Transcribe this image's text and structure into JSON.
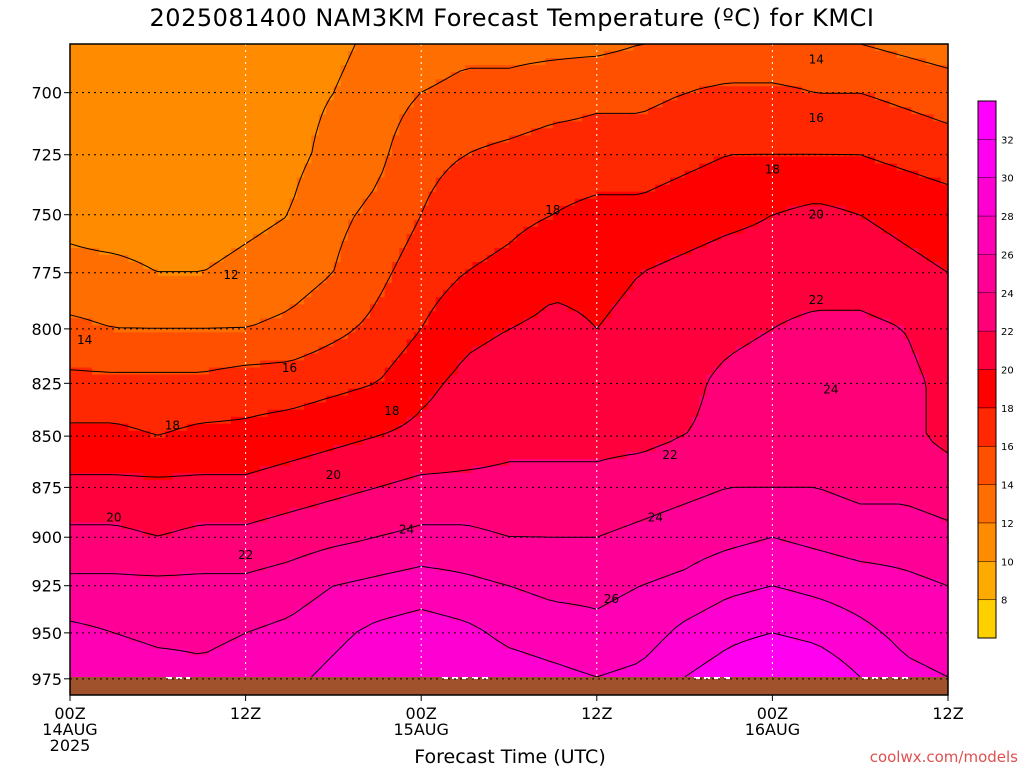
{
  "chart_data": {
    "type": "heatmap",
    "title": "2025081400 NAM3KM Forecast Temperature (ºC) for KMCI",
    "xlabel": "Forecast Time (UTC)",
    "ylabel": "",
    "y_scale": "log-pressure",
    "ylim": [
      974,
      681
    ],
    "y_ticks": [
      700,
      725,
      750,
      775,
      800,
      825,
      850,
      875,
      900,
      925,
      950,
      975
    ],
    "x_range_hours": [
      0,
      60
    ],
    "x_ticks": [
      {
        "hour": 0,
        "lines": [
          "00Z",
          "14AUG",
          "2025"
        ]
      },
      {
        "hour": 12,
        "lines": [
          "12Z"
        ]
      },
      {
        "hour": 24,
        "lines": [
          "00Z",
          "15AUG"
        ]
      },
      {
        "hour": 36,
        "lines": [
          "12Z"
        ]
      },
      {
        "hour": 48,
        "lines": [
          "00Z",
          "16AUG"
        ]
      },
      {
        "hour": 60,
        "lines": [
          "12Z"
        ]
      }
    ],
    "grid": true,
    "colorbar": {
      "position": "right",
      "levels": [
        8,
        10,
        12,
        14,
        16,
        18,
        20,
        22,
        24,
        26,
        28,
        30,
        32
      ],
      "colors": [
        "#ffd000",
        "#ffaa00",
        "#ff8c00",
        "#ff6e00",
        "#ff5000",
        "#ff2800",
        "#ff0000",
        "#ff003c",
        "#ff0078",
        "#ff0096",
        "#ff00b4",
        "#ff00d2",
        "#ff00f0",
        "#ff00ff"
      ]
    },
    "contour_labels": [
      {
        "value": 14,
        "hour": 1,
        "p": 805
      },
      {
        "value": 12,
        "hour": 11,
        "p": 776
      },
      {
        "value": 16,
        "hour": 15,
        "p": 818
      },
      {
        "value": 18,
        "hour": 7,
        "p": 845
      },
      {
        "value": 18,
        "hour": 22,
        "p": 838
      },
      {
        "value": 20,
        "hour": 18,
        "p": 869
      },
      {
        "value": 20,
        "hour": 3,
        "p": 890
      },
      {
        "value": 22,
        "hour": 12,
        "p": 909
      },
      {
        "value": 24,
        "hour": 23,
        "p": 896
      },
      {
        "value": 18,
        "hour": 33,
        "p": 748
      },
      {
        "value": 22,
        "hour": 41,
        "p": 859
      },
      {
        "value": 24,
        "hour": 40,
        "p": 890
      },
      {
        "value": 26,
        "hour": 37,
        "p": 932
      },
      {
        "value": 14,
        "hour": 51,
        "p": 687
      },
      {
        "value": 16,
        "hour": 51,
        "p": 710
      },
      {
        "value": 18,
        "hour": 48,
        "p": 731
      },
      {
        "value": 20,
        "hour": 51,
        "p": 750
      },
      {
        "value": 22,
        "hour": 51,
        "p": 787
      },
      {
        "value": 24,
        "hour": 52,
        "p": 828
      }
    ],
    "temperature_grid": {
      "hours": [
        0,
        3,
        6,
        9,
        12,
        15,
        18,
        21,
        24,
        27,
        30,
        33,
        36,
        39,
        42,
        45,
        48,
        51,
        54,
        57,
        60
      ],
      "pressures": [
        974,
        950,
        925,
        900,
        875,
        850,
        825,
        800,
        775,
        750,
        725,
        700,
        681
      ],
      "values": [
        [
          27.5,
          27.5,
          27.0,
          26.5,
          27.0,
          27.5,
          28.5,
          29.5,
          30.0,
          29.5,
          29.0,
          28.5,
          28.0,
          28.5,
          30.0,
          31.0,
          32.0,
          31.5,
          30.0,
          28.5,
          28.0
        ],
        [
          26.5,
          26.0,
          25.5,
          25.5,
          26.0,
          26.5,
          27.5,
          28.5,
          29.0,
          28.5,
          27.5,
          27.0,
          26.5,
          27.0,
          28.5,
          29.5,
          30.0,
          29.5,
          28.5,
          27.5,
          27.0
        ],
        [
          24.5,
          24.5,
          24.5,
          24.5,
          24.5,
          25.0,
          26.0,
          26.5,
          27.0,
          26.5,
          26.0,
          25.5,
          25.5,
          26.0,
          26.5,
          27.5,
          28.0,
          27.5,
          27.0,
          26.5,
          26.0
        ],
        [
          22.5,
          22.5,
          22.0,
          22.5,
          22.5,
          23.0,
          23.5,
          24.0,
          24.5,
          24.5,
          24.0,
          24.0,
          24.0,
          24.5,
          25.0,
          25.5,
          26.0,
          25.5,
          25.0,
          25.0,
          24.5
        ],
        [
          20.5,
          20.5,
          20.5,
          20.5,
          20.5,
          21.0,
          21.5,
          22.0,
          22.5,
          22.5,
          22.5,
          22.5,
          22.5,
          23.0,
          23.5,
          24.0,
          24.0,
          24.0,
          23.5,
          23.5,
          23.0
        ],
        [
          18.5,
          18.5,
          18.0,
          18.5,
          18.5,
          19.0,
          19.5,
          20.0,
          20.5,
          21.0,
          21.5,
          21.5,
          21.5,
          21.5,
          22.0,
          22.5,
          23.0,
          23.0,
          22.5,
          22.5,
          21.5
        ],
        [
          16.5,
          16.5,
          16.5,
          16.5,
          17.0,
          17.0,
          17.5,
          18.0,
          19.5,
          20.5,
          21.0,
          21.5,
          20.5,
          21.5,
          21.5,
          22.5,
          23.0,
          23.5,
          23.0,
          22.5,
          21.5
        ],
        [
          14.5,
          14.0,
          14.0,
          14.0,
          14.0,
          14.5,
          15.5,
          16.5,
          18.0,
          19.5,
          20.0,
          20.5,
          20.0,
          20.5,
          21.0,
          21.5,
          22.0,
          22.5,
          22.5,
          22.0,
          21.0
        ],
        [
          12.5,
          12.5,
          12.0,
          12.0,
          12.5,
          13.0,
          14.0,
          15.5,
          17.0,
          18.0,
          18.5,
          19.5,
          19.5,
          20.0,
          20.5,
          21.0,
          21.0,
          21.0,
          21.0,
          20.5,
          20.0
        ],
        [
          11.5,
          11.0,
          11.0,
          11.0,
          11.5,
          12.0,
          13.5,
          14.5,
          16.0,
          17.0,
          17.5,
          18.0,
          18.5,
          18.5,
          19.0,
          19.5,
          20.0,
          20.5,
          20.0,
          19.5,
          19.0
        ],
        [
          11.0,
          10.5,
          10.0,
          10.5,
          11.0,
          11.5,
          12.5,
          13.5,
          15.5,
          16.0,
          16.5,
          17.0,
          17.0,
          17.0,
          17.5,
          18.0,
          18.0,
          18.0,
          18.0,
          17.5,
          17.0
        ],
        [
          10.5,
          10.5,
          10.0,
          10.5,
          10.5,
          11.5,
          12.0,
          13.0,
          14.0,
          14.5,
          14.5,
          15.0,
          15.5,
          15.5,
          16.0,
          16.5,
          16.5,
          16.0,
          16.0,
          15.5,
          15.0
        ],
        [
          10.0,
          10.0,
          10.0,
          10.0,
          10.5,
          11.0,
          11.5,
          12.5,
          13.0,
          13.5,
          13.5,
          13.5,
          13.5,
          14.0,
          14.0,
          14.0,
          14.0,
          14.0,
          14.0,
          13.5,
          13.0
        ]
      ]
    },
    "ground_color": "#a0522d",
    "credit": "coolwx.com/models"
  }
}
